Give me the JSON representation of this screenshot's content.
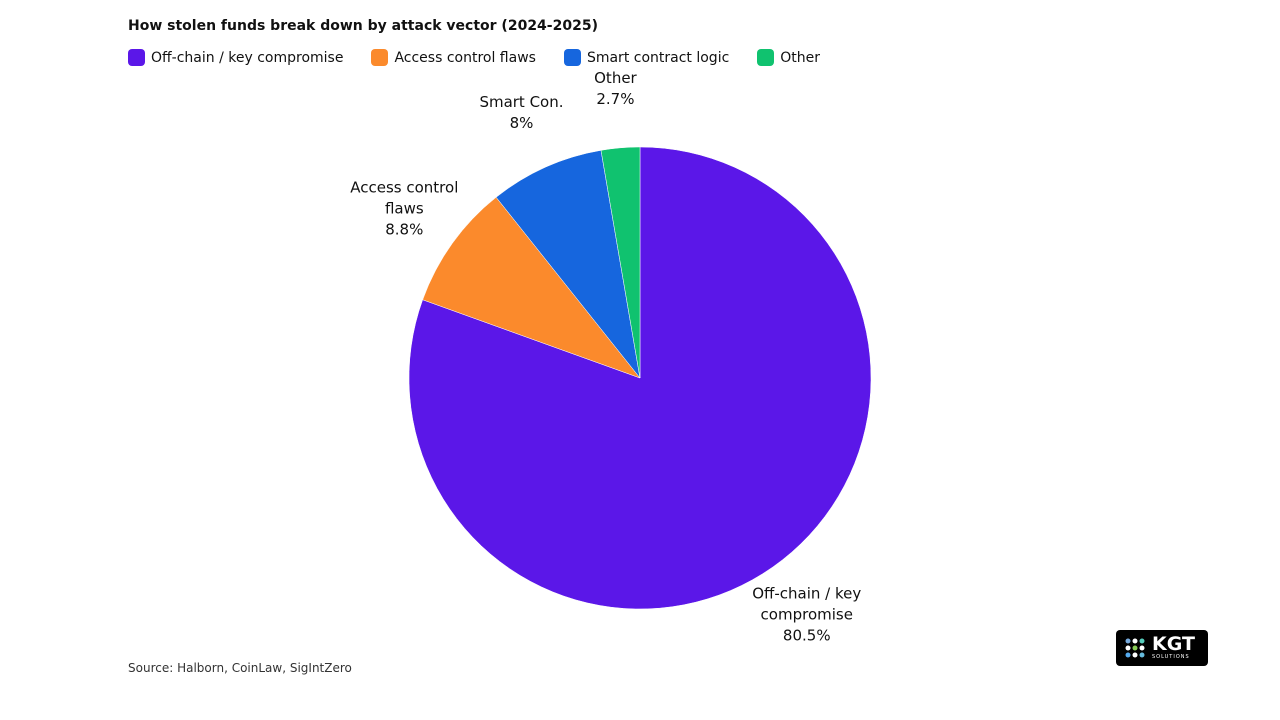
{
  "chart_data": {
    "type": "pie",
    "title": "How stolen funds break down by attack vector (2024-2025)",
    "categories": [
      "Off-chain / key compromise",
      "Access control flaws",
      "Smart contract logic",
      "Other"
    ],
    "slice_labels": [
      "Off-chain / key compromise",
      "Access control flaws",
      "Smart Con.",
      "Other"
    ],
    "values": [
      80.5,
      8.8,
      8,
      2.7
    ],
    "value_labels": [
      "80.5%",
      "8.8%",
      "8%",
      "2.7%"
    ],
    "colors": [
      "#5b17e8",
      "#fb8a2c",
      "#1666de",
      "#10c26f"
    ],
    "source": "Source: Halborn, CoinLaw, SigIntZero"
  },
  "logo": {
    "name": "KGT",
    "tagline": "SOLUTIONS"
  }
}
